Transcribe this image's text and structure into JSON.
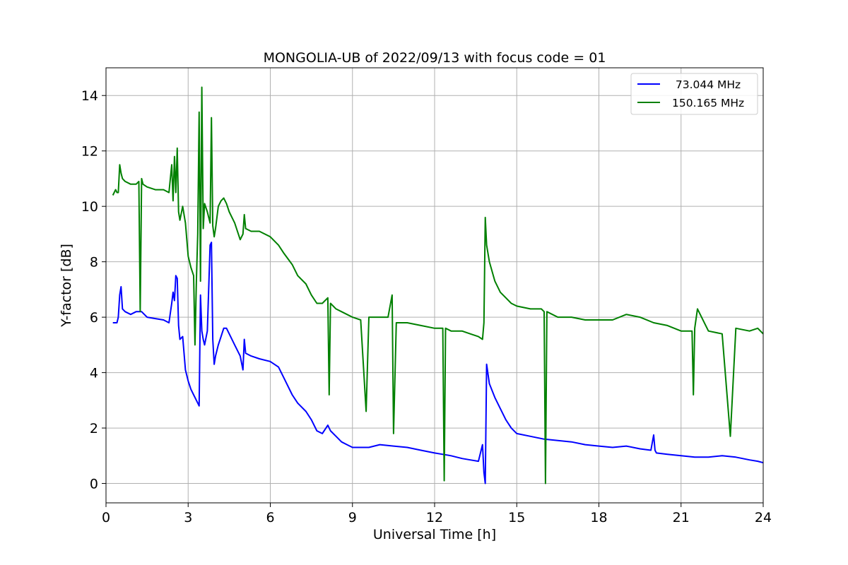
{
  "chart_data": {
    "type": "line",
    "title": "MONGOLIA-UB of 2022/09/13 with focus code = 01",
    "xlabel": "Universal Time [h]",
    "ylabel": "Y-factor [dB]",
    "xlim": [
      0,
      24
    ],
    "ylim": [
      -0.7,
      15
    ],
    "xticks": [
      0,
      3,
      6,
      9,
      12,
      15,
      18,
      21,
      24
    ],
    "yticks": [
      0,
      2,
      4,
      6,
      8,
      10,
      12,
      14
    ],
    "grid": true,
    "legend_position": "top-right",
    "series": [
      {
        "name": "73.044 MHz",
        "legend_label": "  73.044 MHz",
        "color": "#0000ff",
        "x": [
          0.25,
          0.4,
          0.45,
          0.5,
          0.55,
          0.6,
          0.7,
          0.9,
          1.1,
          1.3,
          1.5,
          1.8,
          2.1,
          2.3,
          2.4,
          2.45,
          2.5,
          2.55,
          2.6,
          2.65,
          2.7,
          2.8,
          2.9,
          3.0,
          3.1,
          3.2,
          3.3,
          3.4,
          3.45,
          3.5,
          3.55,
          3.6,
          3.7,
          3.8,
          3.85,
          3.9,
          3.95,
          4.0,
          4.1,
          4.2,
          4.3,
          4.4,
          4.5,
          4.7,
          4.9,
          5.0,
          5.05,
          5.1,
          5.3,
          5.6,
          6.0,
          6.3,
          6.5,
          6.8,
          7.0,
          7.3,
          7.5,
          7.7,
          7.9,
          8.1,
          8.2,
          8.4,
          8.6,
          8.8,
          9.0,
          9.3,
          9.6,
          10.0,
          10.5,
          11.0,
          11.5,
          12.0,
          12.3,
          12.6,
          13.0,
          13.3,
          13.6,
          13.75,
          13.8,
          13.85,
          13.9,
          14.0,
          14.2,
          14.4,
          14.6,
          14.8,
          15.0,
          15.5,
          16.0,
          16.5,
          17.0,
          17.5,
          18.0,
          18.5,
          19.0,
          19.5,
          19.9,
          20.0,
          20.05,
          20.1,
          20.5,
          21.0,
          21.5,
          22.0,
          22.5,
          23.0,
          23.5,
          23.8,
          24.0
        ],
        "y": [
          5.8,
          5.8,
          6.0,
          6.8,
          7.1,
          6.3,
          6.2,
          6.1,
          6.2,
          6.2,
          6.0,
          5.95,
          5.9,
          5.8,
          6.5,
          6.9,
          6.6,
          7.5,
          7.4,
          5.7,
          5.2,
          5.3,
          4.1,
          3.7,
          3.4,
          3.2,
          3.0,
          2.8,
          6.8,
          5.5,
          5.2,
          5.0,
          5.5,
          8.6,
          8.7,
          5.2,
          4.3,
          4.6,
          5.0,
          5.3,
          5.6,
          5.6,
          5.4,
          5.0,
          4.6,
          4.1,
          5.2,
          4.7,
          4.6,
          4.5,
          4.4,
          4.2,
          3.8,
          3.2,
          2.9,
          2.6,
          2.3,
          1.9,
          1.8,
          2.1,
          1.9,
          1.7,
          1.5,
          1.4,
          1.3,
          1.3,
          1.3,
          1.4,
          1.35,
          1.3,
          1.2,
          1.1,
          1.05,
          1.0,
          0.9,
          0.85,
          0.8,
          1.4,
          0.4,
          0.0,
          4.3,
          3.6,
          3.1,
          2.7,
          2.3,
          2.0,
          1.8,
          1.7,
          1.6,
          1.55,
          1.5,
          1.4,
          1.35,
          1.3,
          1.35,
          1.25,
          1.2,
          1.75,
          1.2,
          1.1,
          1.05,
          1.0,
          0.95,
          0.95,
          1.0,
          0.95,
          0.85,
          0.8,
          0.75
        ]
      },
      {
        "name": "150.165 MHz",
        "legend_label": "150.165 MHz",
        "color": "#008000",
        "x": [
          0.25,
          0.35,
          0.4,
          0.45,
          0.5,
          0.55,
          0.6,
          0.7,
          0.9,
          1.1,
          1.2,
          1.25,
          1.3,
          1.35,
          1.5,
          1.8,
          2.0,
          2.1,
          2.3,
          2.4,
          2.45,
          2.5,
          2.55,
          2.6,
          2.65,
          2.7,
          2.8,
          2.9,
          3.0,
          3.1,
          3.2,
          3.25,
          3.3,
          3.35,
          3.4,
          3.45,
          3.5,
          3.55,
          3.6,
          3.7,
          3.8,
          3.85,
          3.9,
          3.95,
          4.0,
          4.1,
          4.2,
          4.3,
          4.4,
          4.5,
          4.7,
          4.9,
          5.0,
          5.05,
          5.1,
          5.3,
          5.6,
          6.0,
          6.3,
          6.5,
          6.8,
          7.0,
          7.3,
          7.5,
          7.7,
          7.9,
          8.1,
          8.15,
          8.2,
          8.4,
          8.6,
          8.8,
          9.0,
          9.3,
          9.5,
          9.6,
          10.0,
          10.3,
          10.45,
          10.5,
          10.6,
          11.0,
          11.5,
          12.0,
          12.3,
          12.35,
          12.4,
          12.6,
          13.0,
          13.3,
          13.6,
          13.75,
          13.8,
          13.85,
          13.9,
          14.0,
          14.2,
          14.4,
          14.6,
          14.8,
          15.0,
          15.5,
          15.9,
          16.0,
          16.05,
          16.1,
          16.5,
          17.0,
          17.5,
          18.0,
          18.5,
          19.0,
          19.5,
          20.0,
          20.5,
          21.0,
          21.4,
          21.45,
          21.5,
          21.6,
          22.0,
          22.5,
          22.8,
          23.0,
          23.5,
          23.8,
          24.0
        ],
        "y": [
          10.4,
          10.6,
          10.5,
          10.5,
          11.5,
          11.2,
          11.0,
          10.9,
          10.8,
          10.8,
          10.9,
          6.2,
          11.0,
          10.8,
          10.7,
          10.6,
          10.6,
          10.6,
          10.5,
          11.5,
          10.2,
          11.8,
          10.5,
          12.1,
          9.8,
          9.5,
          10.0,
          9.4,
          8.2,
          7.8,
          7.5,
          5.0,
          7.3,
          9.0,
          13.4,
          7.3,
          14.3,
          9.2,
          10.1,
          9.8,
          9.4,
          13.2,
          9.3,
          8.9,
          9.2,
          10.0,
          10.2,
          10.3,
          10.1,
          9.8,
          9.4,
          8.8,
          9.0,
          9.7,
          9.2,
          9.1,
          9.1,
          8.9,
          8.6,
          8.3,
          7.9,
          7.5,
          7.2,
          6.8,
          6.5,
          6.5,
          6.7,
          3.2,
          6.5,
          6.3,
          6.2,
          6.1,
          6.0,
          5.9,
          2.6,
          6.0,
          6.0,
          6.0,
          6.8,
          1.8,
          5.8,
          5.8,
          5.7,
          5.6,
          5.6,
          0.1,
          5.6,
          5.5,
          5.5,
          5.4,
          5.3,
          5.2,
          5.8,
          9.6,
          8.6,
          8.0,
          7.3,
          6.9,
          6.7,
          6.5,
          6.4,
          6.3,
          6.3,
          6.2,
          0.0,
          6.2,
          6.0,
          6.0,
          5.9,
          5.9,
          5.9,
          6.1,
          6.0,
          5.8,
          5.7,
          5.5,
          5.5,
          3.2,
          5.6,
          6.3,
          5.5,
          5.4,
          1.7,
          5.6,
          5.5,
          5.6,
          5.4
        ]
      }
    ]
  }
}
